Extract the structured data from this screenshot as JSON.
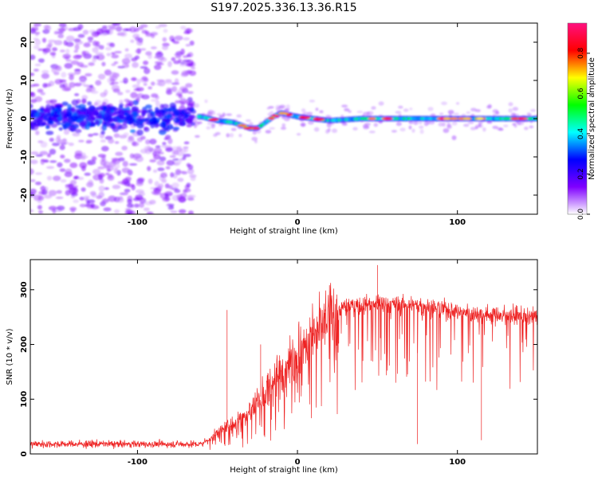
{
  "title": "S197.2025.336.13.36.R15",
  "chart_data": [
    {
      "type": "heatmap",
      "xlabel": "Height of straight line (km)",
      "ylabel": "Frequency (Hz)",
      "xlim": [
        -167,
        150
      ],
      "ylim": [
        -25,
        25
      ],
      "x_ticks": [
        -100,
        0,
        100
      ],
      "y_ticks": [
        -20,
        -10,
        0,
        10,
        20
      ],
      "colorbar": {
        "label": "Normalized spectral amplitude",
        "range": [
          0,
          0.95
        ],
        "ticks": [
          "0.0",
          "0.2",
          "0.4",
          "0.6",
          "0.8"
        ],
        "tick_values": [
          0,
          0.2,
          0.4,
          0.6,
          0.8
        ],
        "colors": [
          "#ffffff",
          "#7f00ff",
          "#0000ff",
          "#00ffff",
          "#00ff00",
          "#ffff00",
          "#ff0000",
          "#ff1080"
        ]
      },
      "ridge": {
        "description_points_x": [
          -167,
          -70,
          -60,
          -50,
          -40,
          -30,
          -25,
          -15,
          -10,
          0,
          10,
          20,
          40,
          60,
          80,
          100,
          120,
          150
        ],
        "frequency_hz": [
          0.5,
          0.5,
          0.5,
          -0.5,
          -1,
          -2.5,
          -2.5,
          0.5,
          1.5,
          0.5,
          0,
          -0.5,
          0,
          0,
          0,
          0,
          0,
          0
        ]
      },
      "noise_region_xlim": [
        -167,
        -65
      ]
    },
    {
      "type": "line",
      "xlabel": "Height of straight line (km)",
      "ylabel": "SNR (10 * v/v)",
      "xlim": [
        -167,
        150
      ],
      "ylim": [
        0,
        355
      ],
      "x_ticks": [
        -100,
        0,
        100
      ],
      "y_ticks": [
        0,
        100,
        200,
        300
      ],
      "color": "#ee2222",
      "envelope": {
        "x": [
          -167,
          -60,
          -55,
          -50,
          -40,
          -30,
          -20,
          -10,
          0,
          10,
          20,
          30,
          50,
          80,
          100,
          120,
          150
        ],
        "median": [
          15,
          15,
          25,
          40,
          55,
          80,
          115,
          150,
          185,
          215,
          250,
          270,
          275,
          270,
          260,
          255,
          250
        ]
      },
      "spikes": [
        {
          "x": -44,
          "y": 263
        },
        {
          "x": -23,
          "y": 200
        },
        {
          "x": 50,
          "y": 345
        },
        {
          "x": 75,
          "y": 18
        },
        {
          "x": 115,
          "y": 25
        }
      ]
    }
  ]
}
